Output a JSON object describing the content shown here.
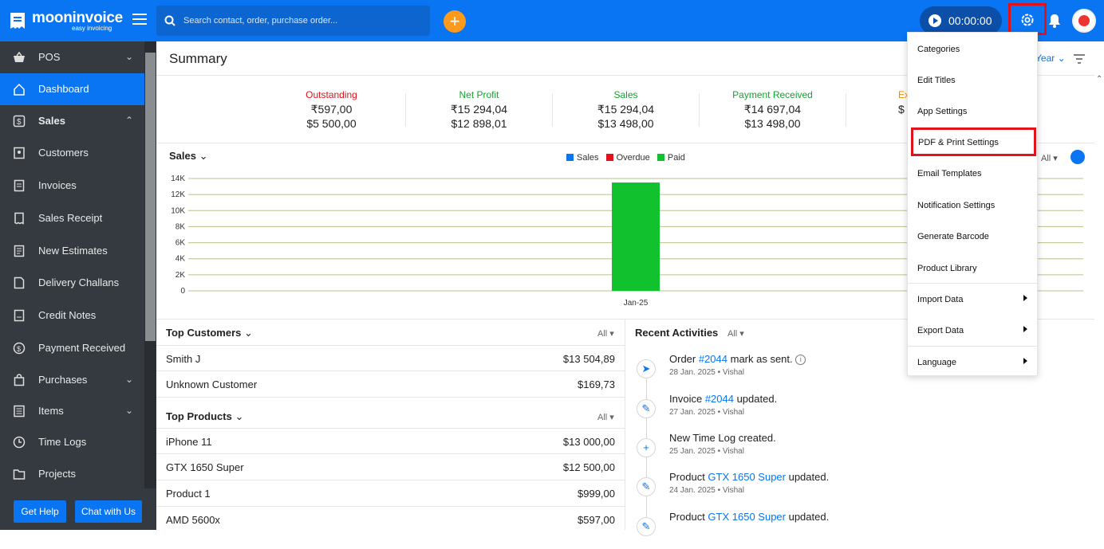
{
  "app": {
    "name": "mooninvoice",
    "tagline": "easy invoicing"
  },
  "search": {
    "placeholder": "Search contact, order, purchase order..."
  },
  "timer": {
    "value": "00:00:00"
  },
  "sidebar": {
    "items": [
      {
        "label": "POS"
      },
      {
        "label": "Dashboard"
      },
      {
        "label": "Sales"
      },
      {
        "label": "Customers"
      },
      {
        "label": "Invoices"
      },
      {
        "label": "Sales Receipt"
      },
      {
        "label": "New Estimates"
      },
      {
        "label": "Delivery Challans"
      },
      {
        "label": "Credit Notes"
      },
      {
        "label": "Payment Received"
      },
      {
        "label": "Purchases"
      },
      {
        "label": "Items"
      },
      {
        "label": "Time Logs"
      },
      {
        "label": "Projects"
      }
    ],
    "get_help": "Get Help",
    "chat": "Chat with Us"
  },
  "summary": {
    "title": "Summary",
    "year_label": "Year",
    "stats": [
      {
        "label": "Outstanding",
        "v1": "₹597,00",
        "v2": "$5 500,00",
        "color": "#e0121b"
      },
      {
        "label": "Net Profit",
        "v1": "₹15 294,04",
        "v2": "$12 898,01",
        "color": "#12a52e"
      },
      {
        "label": "Sales",
        "v1": "₹15 294,04",
        "v2": "$13 498,00",
        "color": "#12a52e"
      },
      {
        "label": "Payment Received",
        "v1": "₹14 697,04",
        "v2": "$13 498,00",
        "color": "#12a52e"
      },
      {
        "label": "Ex",
        "v1": "$",
        "v2": "",
        "color": "#f08a00"
      }
    ]
  },
  "sales_section": {
    "title": "Sales",
    "filter": "All"
  },
  "chart_data": {
    "type": "bar",
    "categories": [
      "Jan-25"
    ],
    "series": [
      {
        "name": "Sales",
        "values": [
          0
        ],
        "color": "#0a75f2"
      },
      {
        "name": "Overdue",
        "values": [
          0
        ],
        "color": "#e0121b"
      },
      {
        "name": "Paid",
        "values": [
          13498
        ],
        "color": "#12c12e"
      }
    ],
    "yticks": [
      "14K",
      "12K",
      "10K",
      "8K",
      "6K",
      "4K",
      "2K",
      "0"
    ],
    "ylim": [
      0,
      14000
    ],
    "grid": true,
    "legend": "top-center"
  },
  "top_customers": {
    "title": "Top Customers",
    "filter": "All",
    "rows": [
      {
        "name": "Smith J",
        "value": "$13 504,89"
      },
      {
        "name": "Unknown Customer",
        "value": "$169,73"
      }
    ]
  },
  "top_products": {
    "title": "Top Products",
    "filter": "All",
    "rows": [
      {
        "name": "iPhone 11",
        "value": "$13 000,00"
      },
      {
        "name": "GTX 1650 Super",
        "value": "$12 500,00"
      },
      {
        "name": "Product 1",
        "value": "$999,00"
      },
      {
        "name": "AMD 5600x",
        "value": "$597,00"
      }
    ]
  },
  "recent_activities": {
    "title": "Recent Activities",
    "filter": "All",
    "items": [
      {
        "pre": "Order ",
        "link": "#2044",
        "post": " mark as sent.",
        "sub": "28 Jan. 2025 • Vishal",
        "icon": "send-icon"
      },
      {
        "pre": "Invoice ",
        "link": "#2044",
        "post": " updated.",
        "sub": "27 Jan. 2025 • Vishal",
        "icon": "edit-icon"
      },
      {
        "pre": "New Time Log created.",
        "link": "",
        "post": "",
        "sub": "25 Jan. 2025 • Vishal",
        "icon": "plus-icon"
      },
      {
        "pre": "Product ",
        "link": "GTX 1650 Super",
        "post": " updated.",
        "sub": "24 Jan. 2025 • Vishal",
        "icon": "edit-icon"
      },
      {
        "pre": "Product ",
        "link": "GTX 1650 Super",
        "post": " updated.",
        "sub": "",
        "icon": "edit-icon"
      }
    ]
  },
  "settings_menu": {
    "items": [
      {
        "label": "Categories"
      },
      {
        "label": "Edit Titles"
      },
      {
        "label": "App Settings"
      },
      {
        "label": "PDF & Print Settings"
      },
      {
        "label": "Email Templates"
      },
      {
        "label": "Notification Settings"
      },
      {
        "label": "Generate Barcode"
      },
      {
        "label": "Product Library"
      },
      {
        "label": "Import Data"
      },
      {
        "label": "Export Data"
      },
      {
        "label": "Language"
      }
    ]
  }
}
